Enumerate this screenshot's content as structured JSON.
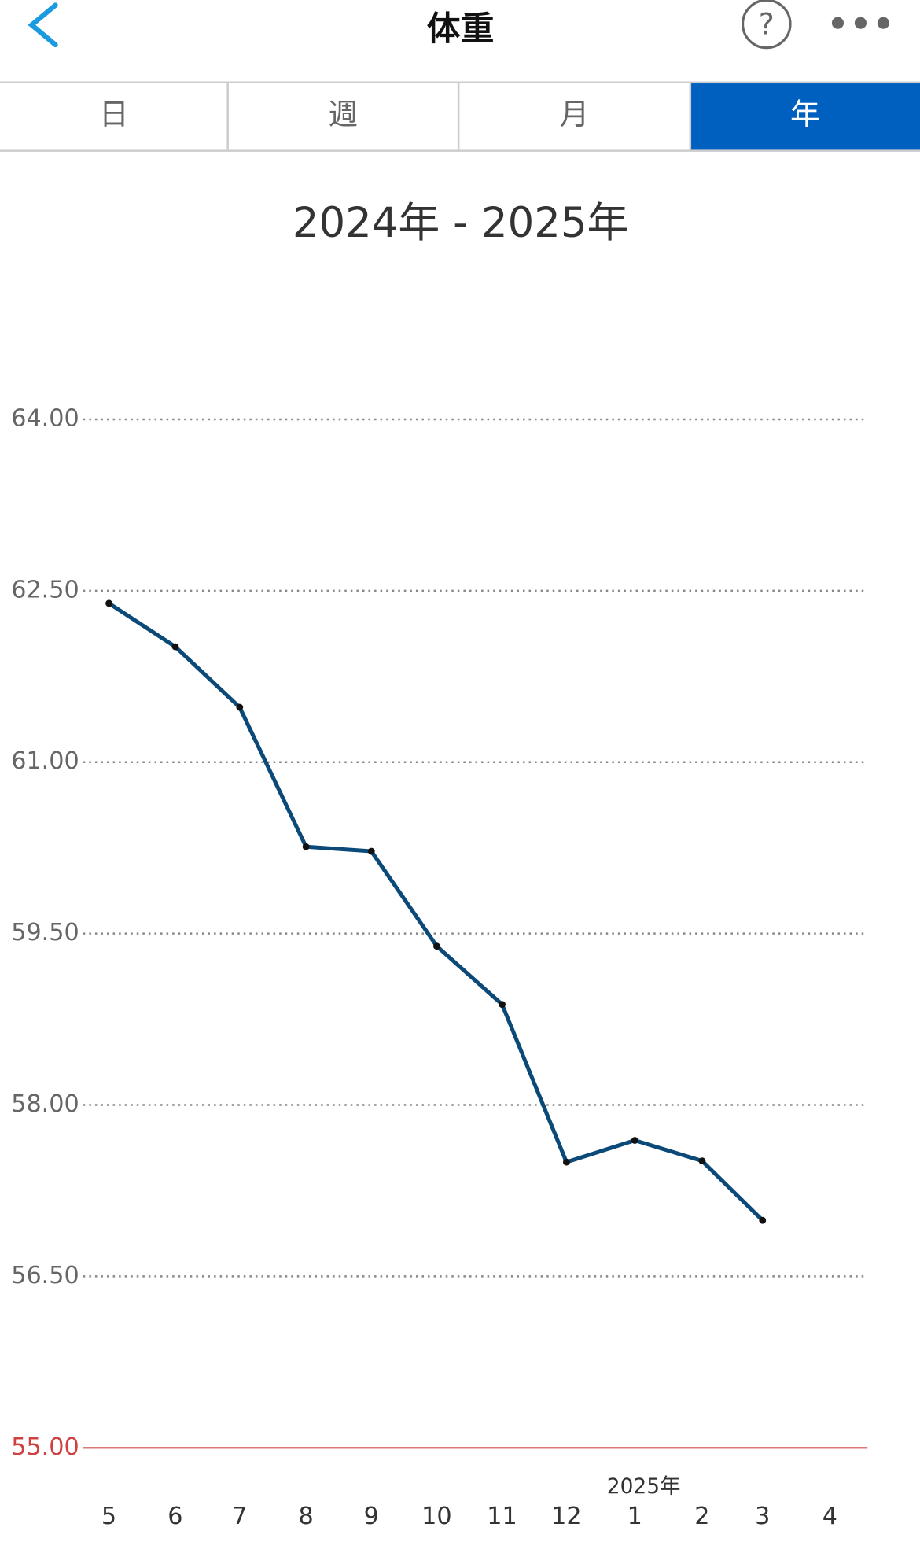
{
  "header": {
    "title": "体重"
  },
  "tabs": {
    "items": [
      "日",
      "週",
      "月",
      "年"
    ],
    "selected": 3
  },
  "chart_data": {
    "type": "line",
    "title": "2024年 - 2025年",
    "categories": [
      "5",
      "6",
      "7",
      "8",
      "9",
      "10",
      "11",
      "12",
      "1",
      "2",
      "3",
      "4"
    ],
    "annotations": [
      {
        "text": "2025年",
        "category": 8
      }
    ],
    "series": [
      {
        "name": "体重",
        "color": "#0b4a78",
        "values": [
          62.39,
          62.01,
          61.48,
          60.26,
          60.22,
          59.39,
          58.88,
          57.5,
          57.69,
          57.51,
          56.99,
          null
        ]
      }
    ],
    "ylim": [
      55,
      64
    ],
    "yticks": [
      {
        "value": 64,
        "label": "64.00"
      },
      {
        "value": 62.5,
        "label": "62.50"
      },
      {
        "value": 61,
        "label": "61.00"
      },
      {
        "value": 59.5,
        "label": "59.50"
      },
      {
        "value": 58,
        "label": "58.00"
      },
      {
        "value": 56.5,
        "label": "56.50"
      },
      {
        "value": 55,
        "label": "55.00"
      }
    ],
    "grid": true,
    "grid_color": "#888888",
    "baseline_color": "#d04040"
  }
}
